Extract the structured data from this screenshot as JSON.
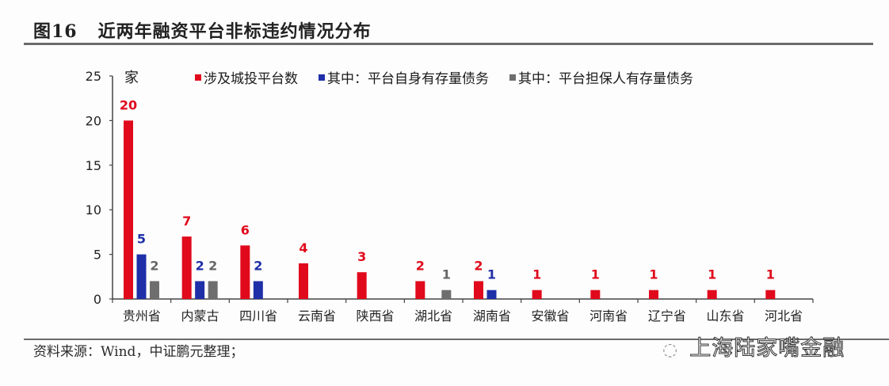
{
  "header": {
    "figure_no": "图16",
    "title": "近两年融资平台非标违约情况分布"
  },
  "footer": {
    "source": "资料来源：Wind，中证鹏元整理；",
    "watermark": "上海陆家嘴金融",
    "watermark_icon": "wechat-icon"
  },
  "colors": {
    "series1": "#e00a1c",
    "series2": "#1f2fa8",
    "series3": "#6e6e6e"
  },
  "chart_data": {
    "type": "bar",
    "title": "近两年融资平台非标违约情况分布",
    "xlabel": "",
    "ylabel": "家",
    "ylim": [
      0,
      25
    ],
    "yticks": [
      0,
      5,
      10,
      15,
      20,
      25
    ],
    "grid": false,
    "legend_position": "top",
    "categories": [
      "贵州省",
      "内蒙古",
      "四川省",
      "云南省",
      "陕西省",
      "湖北省",
      "湖南省",
      "安徽省",
      "河南省",
      "辽宁省",
      "山东省",
      "河北省"
    ],
    "series": [
      {
        "name": "涉及城投平台数",
        "color": "#e00a1c",
        "values": [
          20,
          7,
          6,
          4,
          3,
          2,
          2,
          1,
          1,
          1,
          1,
          1
        ]
      },
      {
        "name": "其中：平台自身有存量债务",
        "color": "#1f2fa8",
        "values": [
          5,
          2,
          2,
          0,
          0,
          0,
          1,
          0,
          0,
          0,
          0,
          0
        ]
      },
      {
        "name": "其中：平台担保人有存量债务",
        "color": "#6e6e6e",
        "values": [
          2,
          2,
          0,
          0,
          0,
          1,
          0,
          0,
          0,
          0,
          0,
          0
        ]
      }
    ]
  }
}
